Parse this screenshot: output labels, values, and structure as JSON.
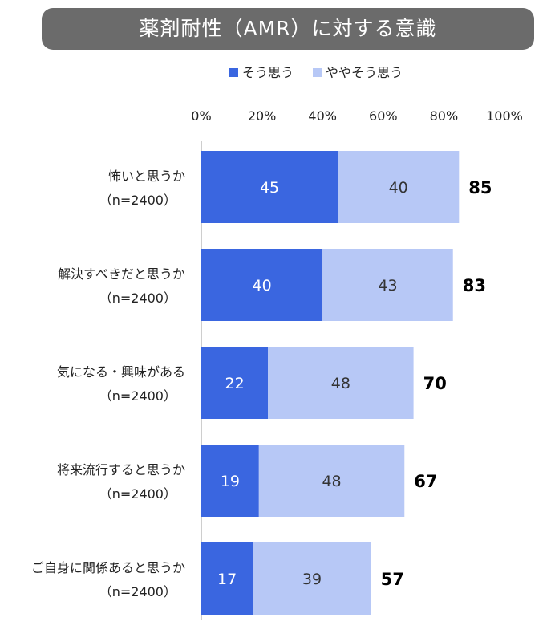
{
  "title": "薬剤耐性（AMR）に対する意識",
  "colors": {
    "series1": "#3a66e0",
    "series2": "#b7c8f6",
    "axis": "#bdbdbd",
    "title_bg": "#6b6b6b"
  },
  "chart_data": {
    "type": "bar",
    "orientation": "horizontal",
    "stacked": true,
    "title": "薬剤耐性（AMR）に対する意識",
    "categories": [
      {
        "label": "怖いと思うか",
        "n": "（n=2400）"
      },
      {
        "label": "解決すべきだと思うか",
        "n": "（n=2400）"
      },
      {
        "label": "気になる・興味がある",
        "n": "（n=2400）"
      },
      {
        "label": "将来流行すると思うか",
        "n": "（n=2400）"
      },
      {
        "label": "ご自身に関係あると思うか",
        "n": "（n=2400）"
      }
    ],
    "series": [
      {
        "name": "そう思う",
        "values": [
          45,
          40,
          22,
          19,
          17
        ]
      },
      {
        "name": "ややそう思う",
        "values": [
          40,
          43,
          48,
          48,
          39
        ]
      }
    ],
    "totals": [
      85,
      83,
      70,
      67,
      57
    ],
    "xlim": [
      0,
      100
    ],
    "ticks": [
      "0%",
      "20%",
      "40%",
      "60%",
      "80%",
      "100%"
    ],
    "legend_position": "top",
    "grid": false
  }
}
